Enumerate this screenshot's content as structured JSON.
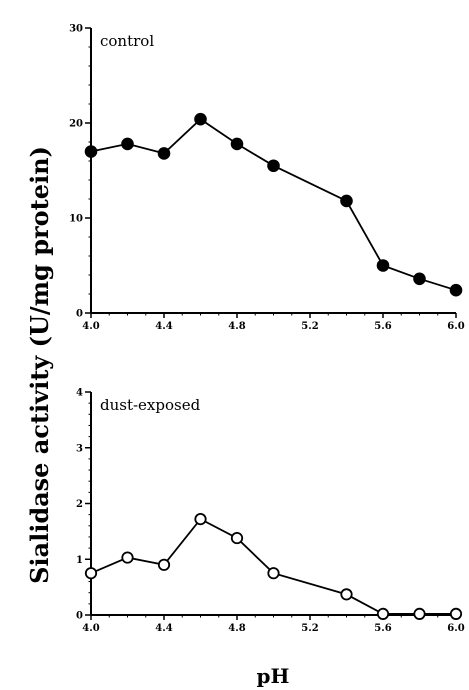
{
  "chart_data": [
    {
      "type": "line",
      "label": "control",
      "x": [
        4.0,
        4.2,
        4.4,
        4.6,
        4.8,
        5.0,
        5.4,
        5.6,
        5.8,
        6.0
      ],
      "y": [
        17.0,
        17.8,
        16.8,
        20.4,
        17.8,
        15.5,
        11.8,
        5.0,
        3.6,
        2.4
      ],
      "xlim": [
        4.0,
        6.0
      ],
      "ylim": [
        0,
        30
      ],
      "xticks": [
        4.0,
        4.4,
        4.8,
        5.2,
        5.6,
        6.0
      ],
      "xtick_labels": [
        "4.0",
        "4.4",
        "4.8",
        "5.2",
        "5.6",
        "6.0"
      ],
      "yticks": [
        0,
        10,
        20,
        30
      ],
      "ytick_labels": [
        "0",
        "10",
        "20",
        "30"
      ],
      "marker": "filled-circle"
    },
    {
      "type": "line",
      "label": "dust-exposed",
      "x": [
        4.0,
        4.2,
        4.4,
        4.6,
        4.8,
        5.0,
        5.4,
        5.6,
        5.8,
        6.0
      ],
      "y": [
        0.75,
        1.03,
        0.9,
        1.72,
        1.38,
        0.75,
        0.37,
        0.02,
        0.02,
        0.02
      ],
      "xlim": [
        4.0,
        6.0
      ],
      "ylim": [
        0,
        4
      ],
      "xticks": [
        4.0,
        4.4,
        4.8,
        5.2,
        5.6,
        6.0
      ],
      "xtick_labels": [
        "4.0",
        "4.4",
        "4.8",
        "5.2",
        "5.6",
        "6.0"
      ],
      "yticks": [
        0,
        1,
        2,
        3,
        4
      ],
      "ytick_labels": [
        "0",
        "1",
        "2",
        "3",
        "4"
      ],
      "marker": "open-circle"
    }
  ],
  "ylabel": "Sialidase activity (U/mg protein)",
  "xlabel": "pH",
  "grid": false
}
